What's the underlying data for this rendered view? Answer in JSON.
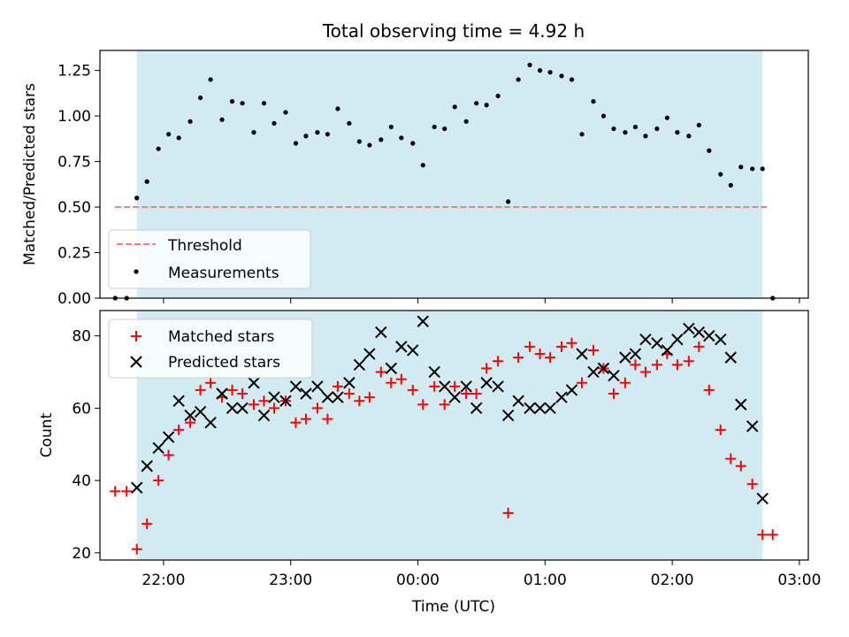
{
  "chart_data": {
    "title": "Total observing time = 4.92 h",
    "x_axis": {
      "label": "Time (UTC)",
      "ticks": [
        "22:00",
        "23:00",
        "00:00",
        "01:00",
        "02:00",
        "03:00"
      ],
      "range_hours": [
        -2.5,
        3.07
      ]
    },
    "observing_window_hours": [
      -2.21,
      2.71
    ],
    "colors": {
      "window": "#add8e6",
      "threshold": "#f08080",
      "matched": "#ff0000",
      "predicted": "#000000",
      "measurement": "#000000"
    },
    "panels": [
      {
        "type": "scatter",
        "ylabel": "Matched/Predicted stars",
        "ylim": [
          0,
          1.36
        ],
        "yticks": [
          "0.00",
          "0.25",
          "0.50",
          "0.75",
          "1.00",
          "1.25"
        ],
        "threshold": {
          "name": "Threshold",
          "value": 0.5,
          "x_range": [
            -2.38,
            2.76
          ]
        },
        "series": [
          {
            "name": "Measurements",
            "x": [
              -2.38,
              -2.29,
              -2.21,
              -2.13,
              -2.04,
              -1.96,
              -1.88,
              -1.79,
              -1.71,
              -1.63,
              -1.54,
              -1.46,
              -1.38,
              -1.29,
              -1.21,
              -1.13,
              -1.04,
              -0.96,
              -0.88,
              -0.79,
              -0.71,
              -0.63,
              -0.54,
              -0.46,
              -0.38,
              -0.29,
              -0.21,
              -0.13,
              -0.04,
              0.04,
              0.13,
              0.21,
              0.29,
              0.38,
              0.46,
              0.54,
              0.63,
              0.71,
              0.79,
              0.88,
              0.96,
              1.04,
              1.13,
              1.21,
              1.29,
              1.38,
              1.46,
              1.54,
              1.63,
              1.71,
              1.79,
              1.88,
              1.96,
              2.04,
              2.13,
              2.21,
              2.29,
              2.38,
              2.46,
              2.54,
              2.63,
              2.71,
              2.79
            ],
            "y": [
              0.0,
              0.0,
              0.55,
              0.64,
              0.82,
              0.9,
              0.88,
              0.97,
              1.1,
              1.2,
              0.98,
              1.08,
              1.07,
              0.91,
              1.07,
              0.96,
              1.02,
              0.85,
              0.89,
              0.91,
              0.9,
              1.04,
              0.96,
              0.86,
              0.84,
              0.87,
              0.94,
              0.88,
              0.85,
              0.73,
              0.94,
              0.93,
              1.05,
              0.97,
              1.07,
              1.06,
              1.11,
              0.53,
              1.2,
              1.28,
              1.25,
              1.24,
              1.22,
              1.2,
              0.9,
              1.08,
              1.0,
              0.93,
              0.91,
              0.94,
              0.89,
              0.93,
              0.99,
              0.91,
              0.89,
              0.95,
              0.81,
              0.68,
              0.62,
              0.72,
              0.71,
              0.71,
              0.0
            ]
          }
        ],
        "legend": {
          "placement": "lower-left",
          "entries": [
            "Threshold",
            "Measurements"
          ]
        }
      },
      {
        "type": "scatter",
        "ylabel": "Count",
        "ylim": [
          18,
          87
        ],
        "yticks": [
          "20",
          "40",
          "60",
          "80"
        ],
        "series": [
          {
            "name": "Matched stars",
            "marker": "plus",
            "x": [
              -2.38,
              -2.29,
              -2.21,
              -2.13,
              -2.04,
              -1.96,
              -1.88,
              -1.79,
              -1.71,
              -1.63,
              -1.54,
              -1.46,
              -1.38,
              -1.29,
              -1.21,
              -1.13,
              -1.04,
              -0.96,
              -0.88,
              -0.79,
              -0.71,
              -0.63,
              -0.54,
              -0.46,
              -0.38,
              -0.29,
              -0.21,
              -0.13,
              -0.04,
              0.04,
              0.13,
              0.21,
              0.29,
              0.38,
              0.46,
              0.54,
              0.63,
              0.71,
              0.79,
              0.88,
              0.96,
              1.04,
              1.13,
              1.21,
              1.29,
              1.38,
              1.46,
              1.54,
              1.63,
              1.71,
              1.79,
              1.88,
              1.96,
              2.04,
              2.13,
              2.21,
              2.29,
              2.38,
              2.46,
              2.54,
              2.63,
              2.71,
              2.79
            ],
            "y": [
              37,
              37,
              21,
              28,
              40,
              47,
              54,
              56,
              65,
              67,
              63,
              65,
              64,
              61,
              62,
              60,
              62,
              56,
              57,
              60,
              57,
              66,
              64,
              62,
              63,
              70,
              67,
              68,
              65,
              61,
              66,
              61,
              66,
              64,
              64,
              71,
              73,
              31,
              74,
              77,
              75,
              74,
              77,
              78,
              67,
              76,
              71,
              64,
              67,
              72,
              70,
              72,
              75,
              72,
              73,
              77,
              65,
              54,
              46,
              44,
              39,
              25,
              25
            ]
          },
          {
            "name": "Predicted stars",
            "marker": "x",
            "x": [
              -2.21,
              -2.13,
              -2.04,
              -1.96,
              -1.88,
              -1.79,
              -1.71,
              -1.63,
              -1.54,
              -1.46,
              -1.38,
              -1.29,
              -1.21,
              -1.13,
              -1.04,
              -0.96,
              -0.88,
              -0.79,
              -0.71,
              -0.63,
              -0.54,
              -0.46,
              -0.38,
              -0.29,
              -0.21,
              -0.13,
              -0.04,
              0.04,
              0.13,
              0.21,
              0.29,
              0.38,
              0.46,
              0.54,
              0.63,
              0.71,
              0.79,
              0.88,
              0.96,
              1.04,
              1.13,
              1.21,
              1.29,
              1.38,
              1.46,
              1.54,
              1.63,
              1.71,
              1.79,
              1.88,
              1.96,
              2.04,
              2.13,
              2.21,
              2.29,
              2.38,
              2.46,
              2.54,
              2.63,
              2.71
            ],
            "y": [
              38,
              44,
              49,
              52,
              62,
              58,
              59,
              56,
              64,
              60,
              60,
              67,
              58,
              63,
              62,
              66,
              64,
              66,
              63,
              63,
              67,
              72,
              75,
              81,
              71,
              77,
              76,
              84,
              70,
              66,
              63,
              66,
              60,
              67,
              66,
              58,
              62,
              60,
              60,
              60,
              63,
              65,
              75,
              70,
              71,
              69,
              74,
              75,
              79,
              78,
              76,
              79,
              82,
              81,
              80,
              79,
              74,
              61,
              55,
              35
            ]
          }
        ],
        "legend": {
          "placement": "upper-left",
          "entries": [
            "Matched stars",
            "Predicted stars"
          ]
        }
      }
    ]
  }
}
